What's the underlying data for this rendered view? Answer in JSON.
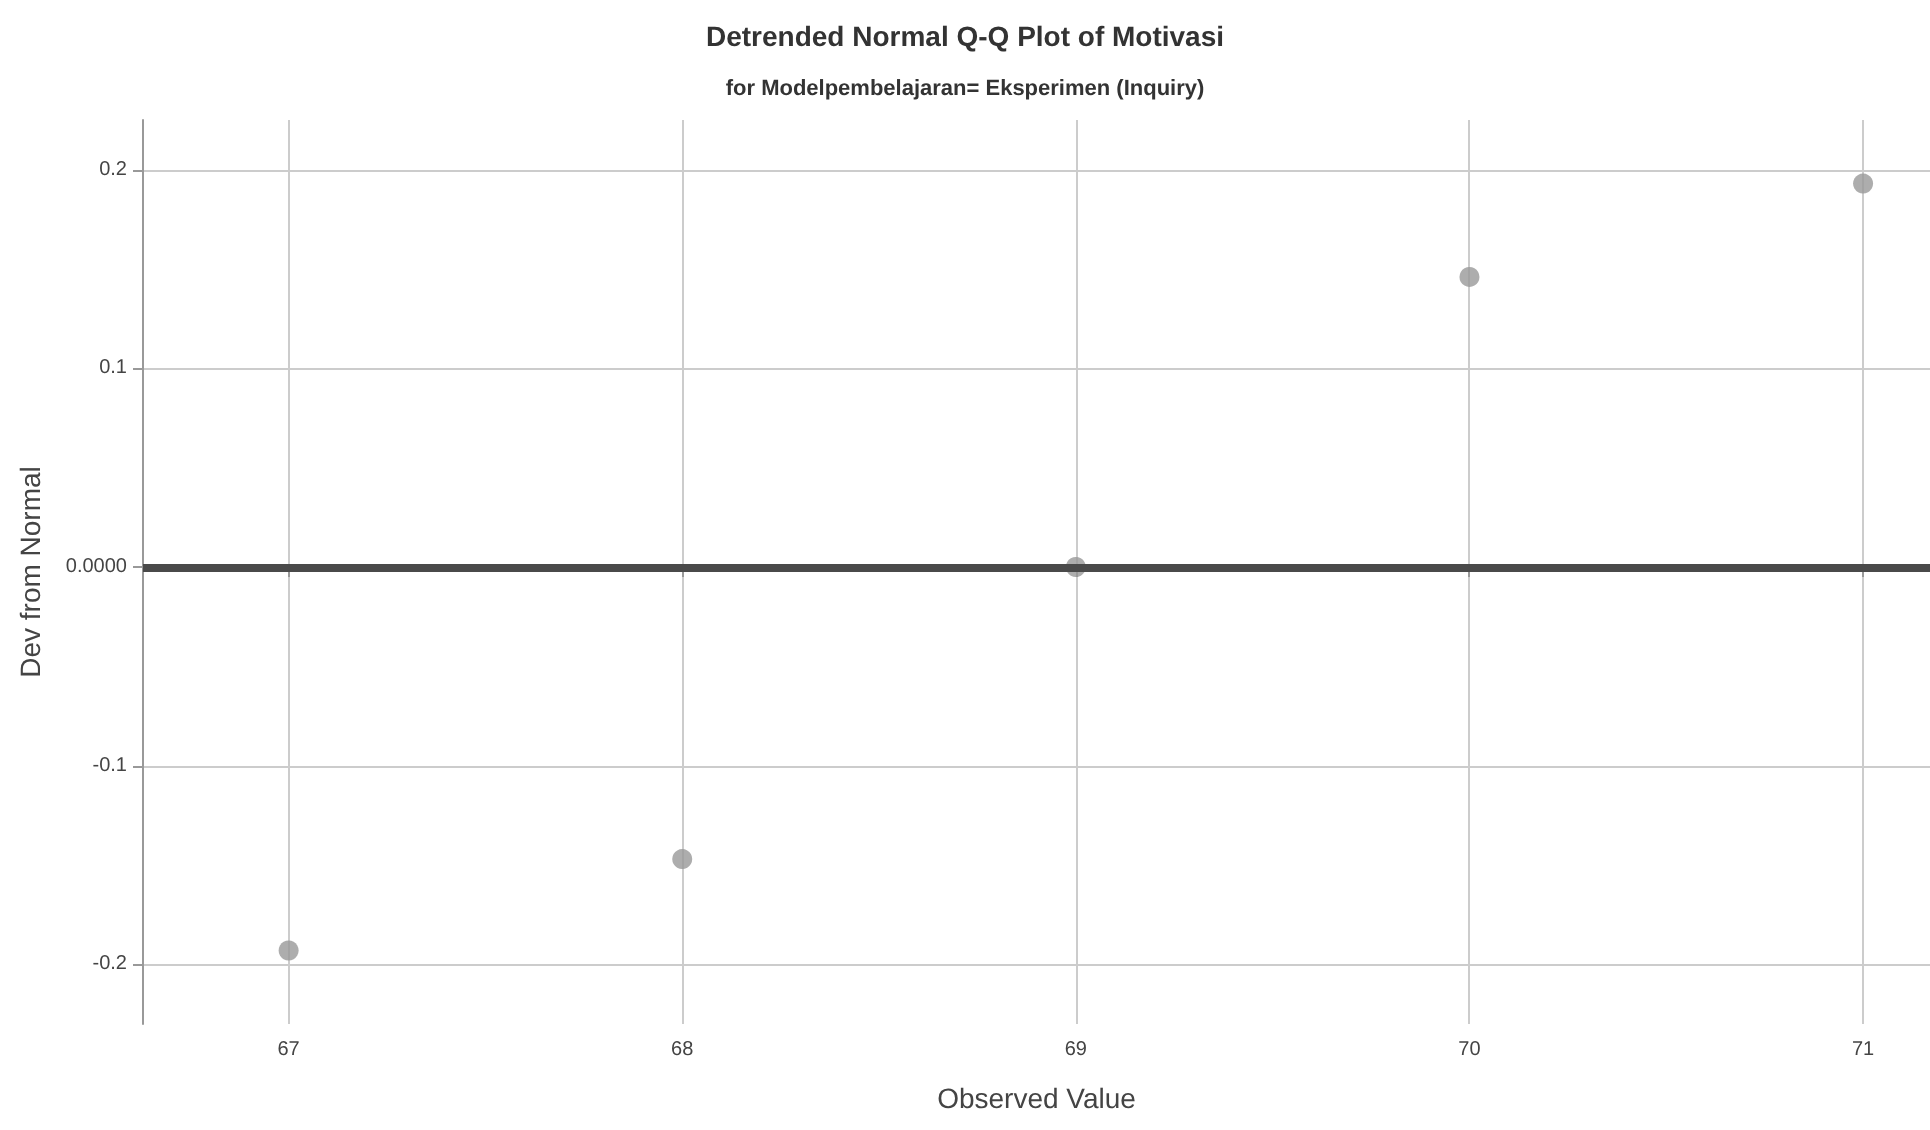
{
  "chart_data": {
    "type": "scatter",
    "title": "Detrended Normal Q-Q Plot of Motivasi",
    "subtitle": "for Modelpembelajaran= Eksperimen (Inquiry)",
    "xlabel": "Observed Value",
    "ylabel": "Dev from Normal",
    "x": [
      67,
      68,
      69,
      70,
      71
    ],
    "series": [
      {
        "color": "#999999",
        "values": [
          -0.193,
          -0.147,
          0.0,
          0.146,
          0.193
        ]
      }
    ],
    "xlim": [
      66.63,
      71.17
    ],
    "xticks": [
      67,
      68,
      69,
      70,
      71
    ],
    "ylim": [
      -0.23,
      0.225
    ],
    "yticks": [
      -0.2,
      -0.1,
      {
        "value": 0,
        "label": "0.0000"
      },
      0.1,
      0.2
    ],
    "ref_lines": [
      {
        "axis": "y",
        "value": 0,
        "color": "#4a4a4a"
      }
    ],
    "grid": true,
    "marker": "circle"
  }
}
